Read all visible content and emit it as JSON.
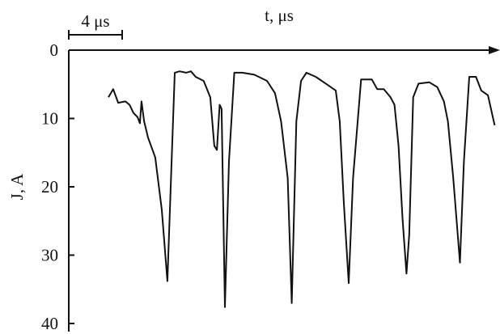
{
  "chart_data": {
    "type": "line",
    "x_label": "t, μs",
    "y_label": "J, A",
    "scale_bar": {
      "value": 4,
      "label": "4 μs"
    },
    "color": "#111111",
    "y_inverted": true,
    "xlim": [
      0,
      32
    ],
    "ylim": [
      0,
      40
    ],
    "yticks": [
      0,
      10,
      20,
      30,
      40
    ],
    "x": [
      2.97,
      3.33,
      3.7,
      4.24,
      4.55,
      4.85,
      5.15,
      5.33,
      5.45,
      5.64,
      5.94,
      6.48,
      6.97,
      7.39,
      7.7,
      7.94,
      8.3,
      8.79,
      9.15,
      9.5,
      10.1,
      10.6,
      10.9,
      11.1,
      11.3,
      11.45,
      11.7,
      12.0,
      12.4,
      13.0,
      13.9,
      14.85,
      15.45,
      15.9,
      16.4,
      16.7,
      17.05,
      17.4,
      17.8,
      18.5,
      19.4,
      20.0,
      20.3,
      20.6,
      20.97,
      21.3,
      21.9,
      22.7,
      23.1,
      23.6,
      24.1,
      24.4,
      24.7,
      25.0,
      25.3,
      25.5,
      25.8,
      26.2,
      27.0,
      27.6,
      28.1,
      28.4,
      28.8,
      29.3,
      29.6,
      30.0,
      30.5,
      30.9,
      31.4,
      31.9
    ],
    "values": [
      6.9,
      5.7,
      7.7,
      7.5,
      8.0,
      9.2,
      9.8,
      10.7,
      7.5,
      10.4,
      12.8,
      15.7,
      23.4,
      33.8,
      16.3,
      3.3,
      3.1,
      3.3,
      3.1,
      3.9,
      4.5,
      6.9,
      14.0,
      14.6,
      8.0,
      8.6,
      37.6,
      16.3,
      3.3,
      3.3,
      3.6,
      4.5,
      6.3,
      10.4,
      18.7,
      37.0,
      10.4,
      4.5,
      3.3,
      3.9,
      5.1,
      5.9,
      10.4,
      22.2,
      34.1,
      18.7,
      4.3,
      4.3,
      5.7,
      5.7,
      6.9,
      8.0,
      14.0,
      24.6,
      32.7,
      27.0,
      6.9,
      4.9,
      4.7,
      5.4,
      7.5,
      10.4,
      18.7,
      31.1,
      16.3,
      3.9,
      3.9,
      5.9,
      6.6,
      11.0
    ]
  }
}
